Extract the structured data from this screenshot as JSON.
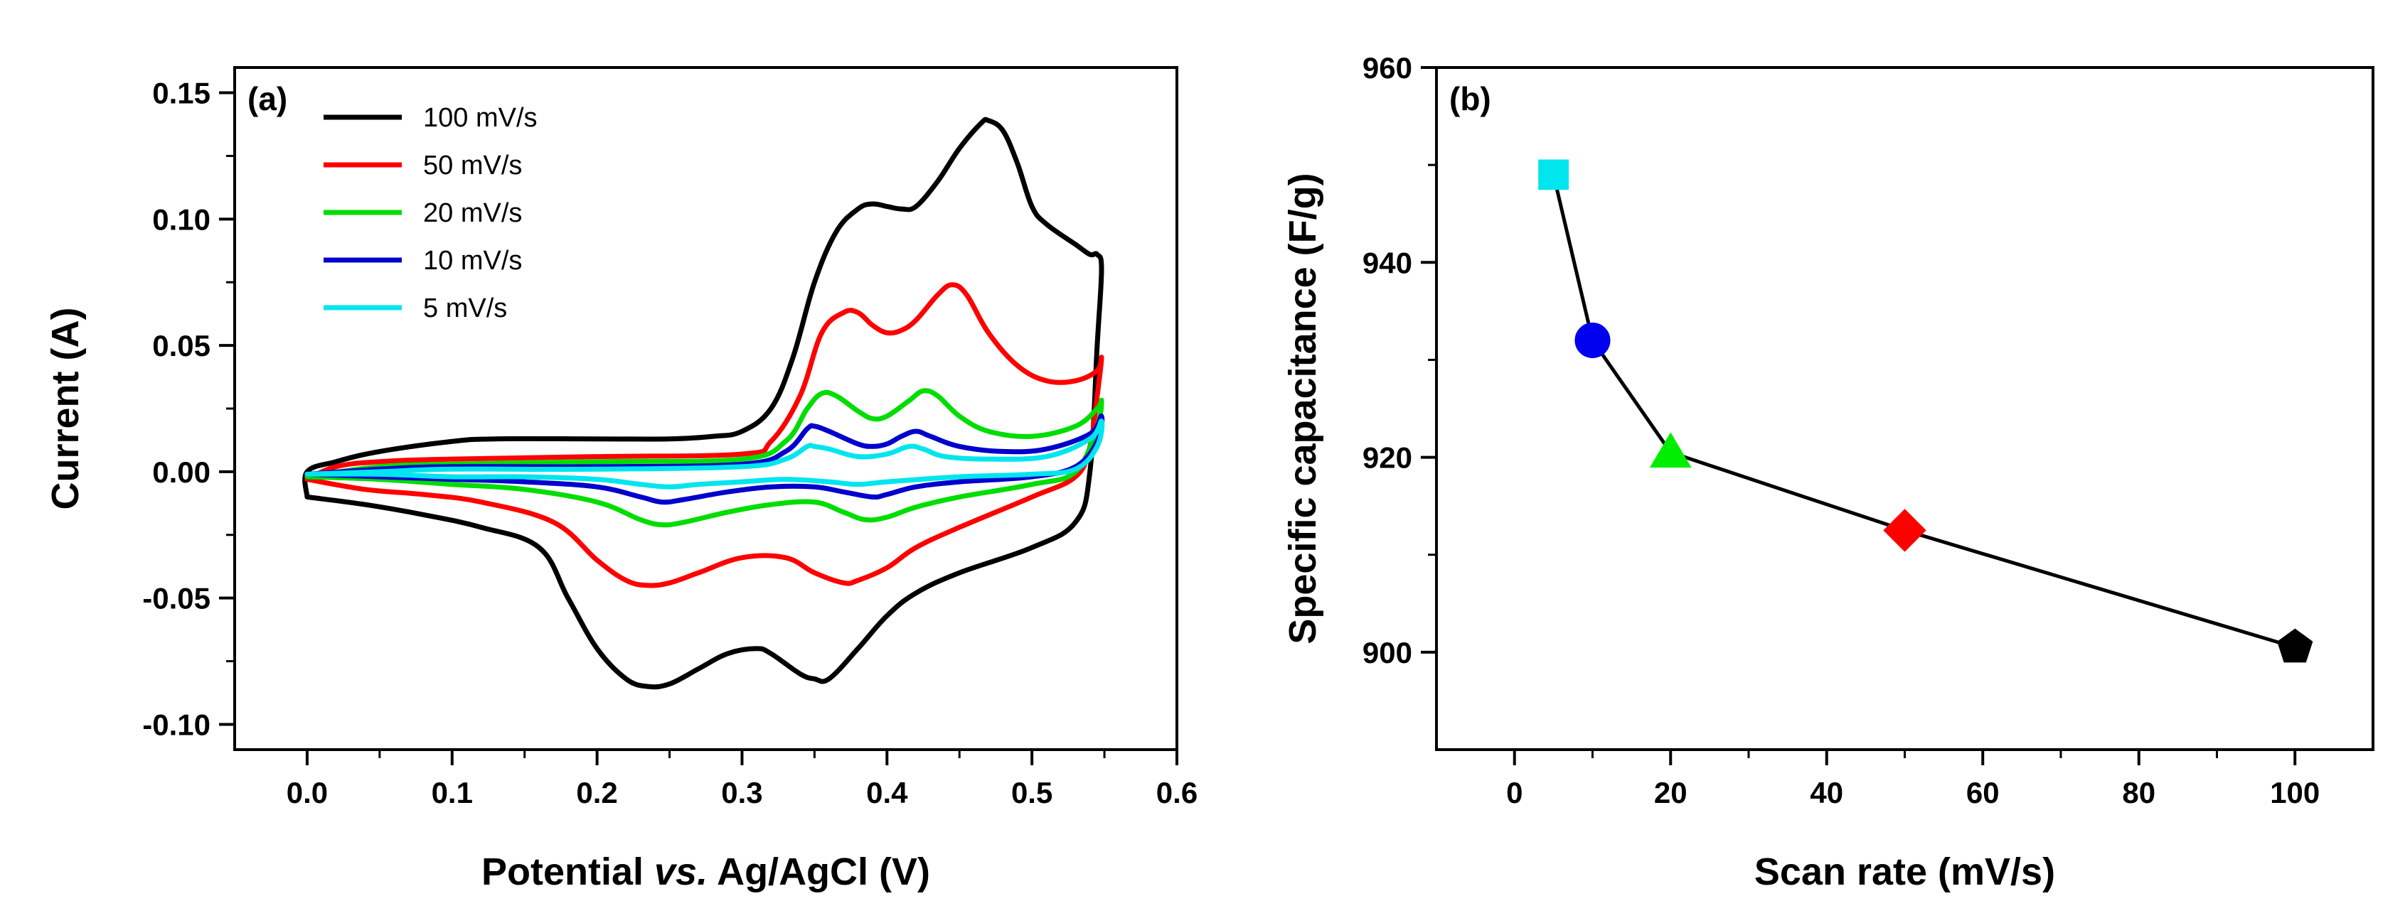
{
  "chart_data": [
    {
      "id": "a",
      "type": "line",
      "panel_label": "(a)",
      "xlabel_parts": [
        "Potential ",
        "vs.",
        " Ag/AgCl (V)"
      ],
      "ylabel": "Current (A)",
      "xlim": [
        -0.05,
        0.6
      ],
      "ylim": [
        -0.11,
        0.16
      ],
      "xticks": [
        0.0,
        0.1,
        0.2,
        0.3,
        0.4,
        0.5,
        0.6
      ],
      "xtick_labels": [
        "0.0",
        "0.1",
        "0.2",
        "0.3",
        "0.4",
        "0.5",
        "0.6"
      ],
      "yticks": [
        -0.1,
        -0.05,
        0.0,
        0.05,
        0.1,
        0.15
      ],
      "ytick_labels": [
        "-0.10",
        "-0.05",
        "0.00",
        "0.05",
        "0.10",
        "0.15"
      ],
      "legend_position": "top-left",
      "series": [
        {
          "name": "100 mV/s",
          "color": "#000000",
          "points": [
            [
              0.0,
              -0.01
            ],
            [
              0.0,
              0.0
            ],
            [
              0.02,
              0.004
            ],
            [
              0.05,
              0.008
            ],
            [
              0.1,
              0.012
            ],
            [
              0.13,
              0.013
            ],
            [
              0.2,
              0.013
            ],
            [
              0.25,
              0.013
            ],
            [
              0.28,
              0.014
            ],
            [
              0.3,
              0.016
            ],
            [
              0.32,
              0.025
            ],
            [
              0.335,
              0.045
            ],
            [
              0.35,
              0.075
            ],
            [
              0.365,
              0.095
            ],
            [
              0.38,
              0.104
            ],
            [
              0.39,
              0.106
            ],
            [
              0.4,
              0.105
            ],
            [
              0.41,
              0.104
            ],
            [
              0.42,
              0.105
            ],
            [
              0.435,
              0.115
            ],
            [
              0.45,
              0.128
            ],
            [
              0.465,
              0.138
            ],
            [
              0.47,
              0.139
            ],
            [
              0.48,
              0.135
            ],
            [
              0.49,
              0.122
            ],
            [
              0.5,
              0.105
            ],
            [
              0.51,
              0.098
            ],
            [
              0.53,
              0.09
            ],
            [
              0.54,
              0.086
            ],
            [
              0.545,
              0.086
            ],
            [
              0.548,
              0.08
            ],
            [
              0.545,
              0.05
            ],
            [
              0.54,
              0.0
            ],
            [
              0.53,
              -0.02
            ],
            [
              0.5,
              -0.03
            ],
            [
              0.45,
              -0.04
            ],
            [
              0.42,
              -0.048
            ],
            [
              0.4,
              -0.057
            ],
            [
              0.38,
              -0.07
            ],
            [
              0.36,
              -0.082
            ],
            [
              0.35,
              -0.082
            ],
            [
              0.34,
              -0.08
            ],
            [
              0.32,
              -0.072
            ],
            [
              0.31,
              -0.07
            ],
            [
              0.29,
              -0.072
            ],
            [
              0.27,
              -0.078
            ],
            [
              0.25,
              -0.084
            ],
            [
              0.235,
              -0.085
            ],
            [
              0.22,
              -0.082
            ],
            [
              0.2,
              -0.07
            ],
            [
              0.18,
              -0.05
            ],
            [
              0.16,
              -0.03
            ],
            [
              0.12,
              -0.022
            ],
            [
              0.08,
              -0.017
            ],
            [
              0.04,
              -0.013
            ],
            [
              0.0,
              -0.01
            ]
          ]
        },
        {
          "name": "50 mV/s",
          "color": "#ff0000",
          "points": [
            [
              0.0,
              -0.003
            ],
            [
              0.02,
              0.002
            ],
            [
              0.05,
              0.004
            ],
            [
              0.1,
              0.005
            ],
            [
              0.2,
              0.006
            ],
            [
              0.3,
              0.007
            ],
            [
              0.32,
              0.012
            ],
            [
              0.34,
              0.03
            ],
            [
              0.355,
              0.055
            ],
            [
              0.37,
              0.063
            ],
            [
              0.38,
              0.063
            ],
            [
              0.39,
              0.058
            ],
            [
              0.4,
              0.055
            ],
            [
              0.41,
              0.056
            ],
            [
              0.42,
              0.06
            ],
            [
              0.435,
              0.07
            ],
            [
              0.445,
              0.074
            ],
            [
              0.455,
              0.07
            ],
            [
              0.47,
              0.055
            ],
            [
              0.49,
              0.042
            ],
            [
              0.51,
              0.036
            ],
            [
              0.53,
              0.036
            ],
            [
              0.545,
              0.04
            ],
            [
              0.548,
              0.045
            ],
            [
              0.545,
              0.03
            ],
            [
              0.54,
              0.01
            ],
            [
              0.53,
              -0.002
            ],
            [
              0.5,
              -0.01
            ],
            [
              0.45,
              -0.022
            ],
            [
              0.42,
              -0.03
            ],
            [
              0.4,
              -0.038
            ],
            [
              0.38,
              -0.043
            ],
            [
              0.37,
              -0.044
            ],
            [
              0.35,
              -0.04
            ],
            [
              0.33,
              -0.034
            ],
            [
              0.3,
              -0.034
            ],
            [
              0.27,
              -0.04
            ],
            [
              0.25,
              -0.044
            ],
            [
              0.235,
              -0.045
            ],
            [
              0.22,
              -0.043
            ],
            [
              0.2,
              -0.035
            ],
            [
              0.17,
              -0.02
            ],
            [
              0.12,
              -0.012
            ],
            [
              0.08,
              -0.009
            ],
            [
              0.04,
              -0.007
            ],
            [
              0.0,
              -0.003
            ]
          ]
        },
        {
          "name": "20 mV/s",
          "color": "#00dd00",
          "points": [
            [
              0.0,
              -0.002
            ],
            [
              0.05,
              0.002
            ],
            [
              0.1,
              0.003
            ],
            [
              0.2,
              0.004
            ],
            [
              0.3,
              0.005
            ],
            [
              0.33,
              0.012
            ],
            [
              0.345,
              0.025
            ],
            [
              0.355,
              0.031
            ],
            [
              0.365,
              0.03
            ],
            [
              0.38,
              0.024
            ],
            [
              0.39,
              0.021
            ],
            [
              0.4,
              0.022
            ],
            [
              0.415,
              0.028
            ],
            [
              0.425,
              0.032
            ],
            [
              0.435,
              0.03
            ],
            [
              0.45,
              0.022
            ],
            [
              0.47,
              0.016
            ],
            [
              0.5,
              0.014
            ],
            [
              0.53,
              0.018
            ],
            [
              0.545,
              0.025
            ],
            [
              0.548,
              0.028
            ],
            [
              0.545,
              0.018
            ],
            [
              0.53,
              0.0
            ],
            [
              0.5,
              -0.005
            ],
            [
              0.45,
              -0.01
            ],
            [
              0.42,
              -0.014
            ],
            [
              0.4,
              -0.018
            ],
            [
              0.385,
              -0.019
            ],
            [
              0.37,
              -0.016
            ],
            [
              0.35,
              -0.012
            ],
            [
              0.32,
              -0.013
            ],
            [
              0.29,
              -0.016
            ],
            [
              0.26,
              -0.02
            ],
            [
              0.245,
              -0.021
            ],
            [
              0.23,
              -0.019
            ],
            [
              0.2,
              -0.012
            ],
            [
              0.15,
              -0.007
            ],
            [
              0.1,
              -0.005
            ],
            [
              0.05,
              -0.003
            ],
            [
              0.0,
              -0.002
            ]
          ]
        },
        {
          "name": "10 mV/s",
          "color": "#0000cc",
          "points": [
            [
              0.0,
              -0.001
            ],
            [
              0.05,
              0.001
            ],
            [
              0.1,
              0.002
            ],
            [
              0.2,
              0.002
            ],
            [
              0.3,
              0.003
            ],
            [
              0.33,
              0.008
            ],
            [
              0.345,
              0.017
            ],
            [
              0.35,
              0.018
            ],
            [
              0.36,
              0.016
            ],
            [
              0.38,
              0.011
            ],
            [
              0.39,
              0.01
            ],
            [
              0.4,
              0.011
            ],
            [
              0.41,
              0.014
            ],
            [
              0.42,
              0.016
            ],
            [
              0.43,
              0.014
            ],
            [
              0.45,
              0.01
            ],
            [
              0.48,
              0.008
            ],
            [
              0.51,
              0.009
            ],
            [
              0.54,
              0.015
            ],
            [
              0.548,
              0.022
            ],
            [
              0.545,
              0.012
            ],
            [
              0.53,
              0.002
            ],
            [
              0.5,
              -0.002
            ],
            [
              0.45,
              -0.004
            ],
            [
              0.42,
              -0.006
            ],
            [
              0.4,
              -0.009
            ],
            [
              0.39,
              -0.01
            ],
            [
              0.37,
              -0.008
            ],
            [
              0.35,
              -0.006
            ],
            [
              0.32,
              -0.006
            ],
            [
              0.29,
              -0.008
            ],
            [
              0.26,
              -0.011
            ],
            [
              0.245,
              -0.012
            ],
            [
              0.23,
              -0.01
            ],
            [
              0.2,
              -0.006
            ],
            [
              0.15,
              -0.004
            ],
            [
              0.1,
              -0.003
            ],
            [
              0.05,
              -0.002
            ],
            [
              0.0,
              -0.001
            ]
          ]
        },
        {
          "name": "5 mV/s",
          "color": "#00e5ee",
          "points": [
            [
              0.0,
              -0.001
            ],
            [
              0.05,
              0.0
            ],
            [
              0.1,
              0.001
            ],
            [
              0.2,
              0.001
            ],
            [
              0.3,
              0.002
            ],
            [
              0.33,
              0.005
            ],
            [
              0.345,
              0.01
            ],
            [
              0.35,
              0.01
            ],
            [
              0.36,
              0.009
            ],
            [
              0.38,
              0.006
            ],
            [
              0.4,
              0.007
            ],
            [
              0.415,
              0.01
            ],
            [
              0.425,
              0.009
            ],
            [
              0.44,
              0.006
            ],
            [
              0.47,
              0.005
            ],
            [
              0.51,
              0.006
            ],
            [
              0.54,
              0.013
            ],
            [
              0.548,
              0.02
            ],
            [
              0.545,
              0.01
            ],
            [
              0.53,
              0.001
            ],
            [
              0.5,
              -0.001
            ],
            [
              0.45,
              -0.002
            ],
            [
              0.4,
              -0.004
            ],
            [
              0.38,
              -0.005
            ],
            [
              0.36,
              -0.004
            ],
            [
              0.33,
              -0.003
            ],
            [
              0.3,
              -0.004
            ],
            [
              0.27,
              -0.005
            ],
            [
              0.25,
              -0.006
            ],
            [
              0.23,
              -0.005
            ],
            [
              0.2,
              -0.003
            ],
            [
              0.15,
              -0.002
            ],
            [
              0.1,
              -0.002
            ],
            [
              0.05,
              -0.001
            ],
            [
              0.0,
              -0.001
            ]
          ]
        }
      ]
    },
    {
      "id": "b",
      "type": "scatter",
      "panel_label": "(b)",
      "xlabel": "Scan rate (mV/s)",
      "ylabel": "Specific capacitance (F/g)",
      "xlim": [
        -10,
        110
      ],
      "ylim": [
        890,
        960
      ],
      "xticks": [
        0,
        20,
        40,
        60,
        80,
        100
      ],
      "xtick_labels": [
        "0",
        "20",
        "40",
        "60",
        "80",
        "100"
      ],
      "yticks": [
        900,
        920,
        940,
        960
      ],
      "ytick_labels": [
        "900",
        "920",
        "940",
        "960"
      ],
      "connect_points": true,
      "line_color": "#000000",
      "points": [
        {
          "x": 5,
          "y": 949,
          "marker": "square",
          "color": "#00e5ee"
        },
        {
          "x": 10,
          "y": 932,
          "marker": "circle",
          "color": "#0000ee"
        },
        {
          "x": 20,
          "y": 920.5,
          "marker": "triangle",
          "color": "#00ee00"
        },
        {
          "x": 50,
          "y": 912.5,
          "marker": "diamond",
          "color": "#ff0000"
        },
        {
          "x": 100,
          "y": 900.5,
          "marker": "pentagon",
          "color": "#000000"
        }
      ]
    }
  ]
}
